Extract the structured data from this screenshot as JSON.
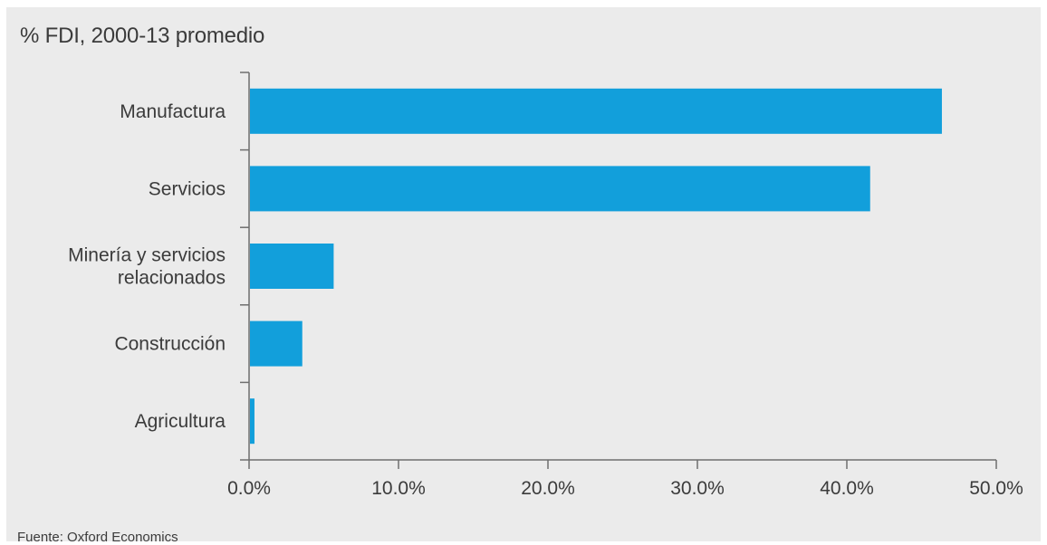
{
  "header": {
    "title": "% FDI, 2000-13 promedio"
  },
  "footer": {
    "source": "Fuente: Oxford Economics"
  },
  "colors": {
    "bar": "#129fdb",
    "axis": "#6e6e6e",
    "background": "#ebebeb",
    "text": "#3b3b3b"
  },
  "chart_data": {
    "type": "bar",
    "orientation": "horizontal",
    "title": "% FDI, 2000-13 promedio",
    "categories": [
      [
        "Manufactura"
      ],
      [
        "Servicios"
      ],
      [
        "Minería y servicios",
        "relacionados"
      ],
      [
        "Construcción"
      ],
      [
        "Agricultura"
      ]
    ],
    "values": [
      46.3,
      41.5,
      5.6,
      3.5,
      0.3
    ],
    "xlim": [
      0,
      50
    ],
    "xticks": [
      0,
      10,
      20,
      30,
      40,
      50
    ],
    "xtick_labels": [
      "0.0%",
      "10.0%",
      "20.0%",
      "30.0%",
      "40.0%",
      "50.0%"
    ],
    "grid": false,
    "legend": "none"
  }
}
